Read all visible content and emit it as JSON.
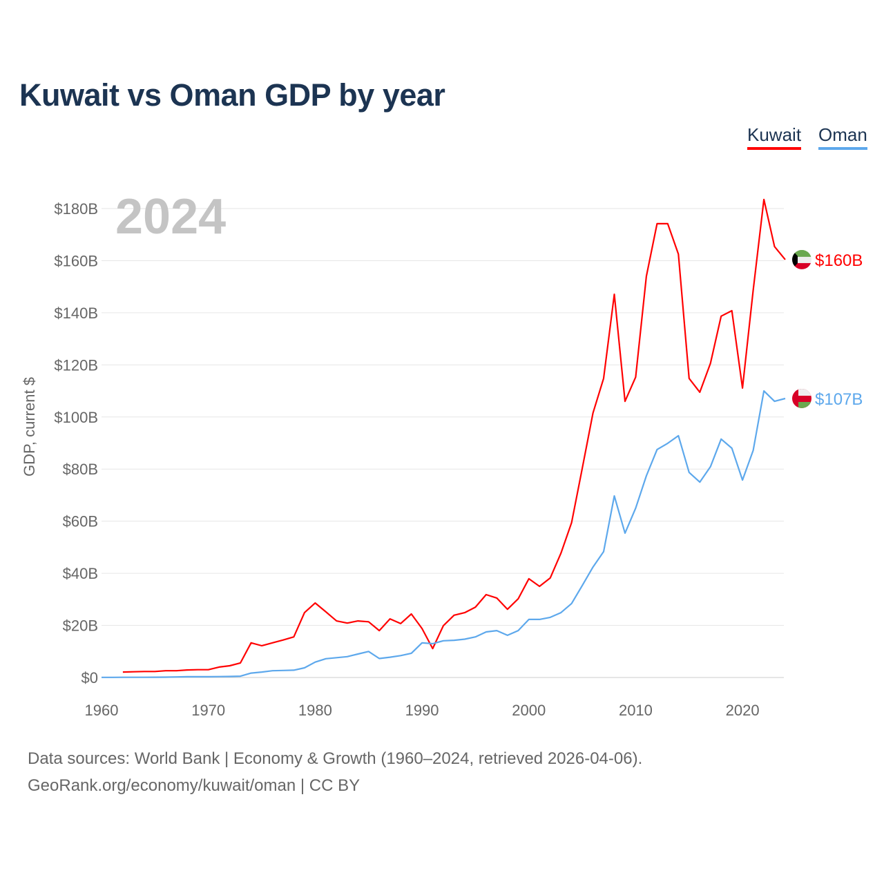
{
  "title": "Kuwait vs Oman GDP by year",
  "year_watermark": "2024",
  "footer": {
    "line1": "Data sources: World Bank | Economy & Growth (1960–2024, retrieved 2026-04-06).",
    "line2": "GeoRank.org/economy/kuwait/oman | CC BY"
  },
  "chart_data": {
    "type": "line",
    "title": "Kuwait vs Oman GDP by year",
    "xlabel": "",
    "ylabel": "GDP, current $",
    "xlim": [
      1960,
      2024
    ],
    "ylim": [
      0,
      180
    ],
    "yticks": [
      0,
      20,
      40,
      60,
      80,
      100,
      120,
      140,
      160,
      180
    ],
    "ytick_labels": [
      "$0",
      "$20B",
      "$40B",
      "$60B",
      "$80B",
      "$100B",
      "$120B",
      "$140B",
      "$160B",
      "$180B"
    ],
    "xticks": [
      1960,
      1970,
      1980,
      1990,
      2000,
      2010,
      2020
    ],
    "xtick_labels": [
      "1960",
      "1970",
      "1980",
      "1990",
      "2000",
      "2010",
      "2020"
    ],
    "grid": true,
    "legend_placement": "top-right",
    "series": [
      {
        "name": "Kuwait",
        "color": "#ff0000",
        "end_label": "$160B",
        "start_year": 1962,
        "values": [
          2.1,
          2.2,
          2.3,
          2.3,
          2.6,
          2.6,
          2.9,
          3.0,
          3.0,
          4.0,
          4.5,
          5.6,
          13.3,
          12.2,
          13.3,
          14.4,
          15.6,
          24.9,
          28.6,
          25.2,
          21.7,
          20.9,
          21.7,
          21.4,
          18.0,
          22.5,
          20.7,
          24.4,
          18.8,
          11.1,
          19.9,
          23.9,
          24.9,
          27.0,
          31.8,
          30.5,
          26.2,
          30.2,
          37.9,
          35.0,
          38.2,
          47.7,
          59.4,
          80.3,
          101.5,
          114.8,
          147.1,
          106.0,
          115.3,
          154.0,
          174.2,
          174.2,
          162.5,
          114.8,
          109.5,
          120.6,
          138.7,
          140.8,
          111.1,
          148.7,
          183.5,
          165.4,
          160.4
        ]
      },
      {
        "name": "Oman",
        "color": "#5da8ec",
        "end_label": "$107B",
        "start_year": 1960,
        "values": [
          0.05,
          0.06,
          0.07,
          0.08,
          0.09,
          0.1,
          0.12,
          0.2,
          0.3,
          0.3,
          0.3,
          0.35,
          0.4,
          0.5,
          1.7,
          2.1,
          2.6,
          2.7,
          2.8,
          3.7,
          5.9,
          7.2,
          7.6,
          8.0,
          9.0,
          10.0,
          7.3,
          7.8,
          8.4,
          9.3,
          13.3,
          13.0,
          14.1,
          14.3,
          14.7,
          15.6,
          17.5,
          18.0,
          16.2,
          18.0,
          22.3,
          22.3,
          23.1,
          24.9,
          28.4,
          35.3,
          42.4,
          48.3,
          69.7,
          55.4,
          65.0,
          77.4,
          87.5,
          89.9,
          92.8,
          78.7,
          75.0,
          80.9,
          91.5,
          88.0,
          75.8,
          87.2,
          110.0,
          106.0,
          107.1
        ]
      }
    ]
  }
}
